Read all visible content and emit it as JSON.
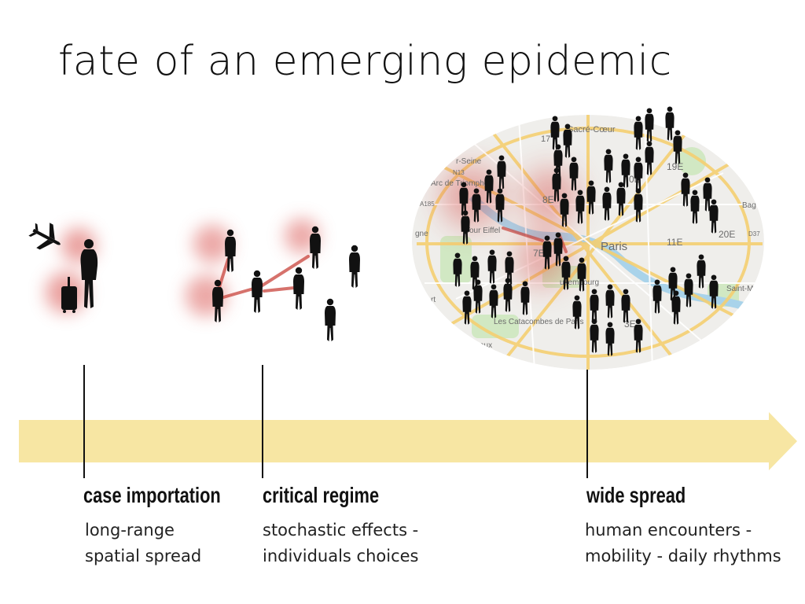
{
  "title": "fate of an emerging epidemic",
  "colors": {
    "timeline_arrow": "#f7e6a3",
    "infection_glow": "#d9534f",
    "transmission_line": "#c9443c",
    "silhouette": "#111111",
    "marker_line": "#111111",
    "map_road": "#f4cf72",
    "map_water": "#a9d3ea",
    "map_park": "#c9e6b9"
  },
  "stages": [
    {
      "id": "case-importation",
      "label": "case importation",
      "desc_lines": [
        "long-range",
        "spatial spread"
      ],
      "icons": [
        "airplane-icon",
        "traveler-with-suitcase-icon"
      ]
    },
    {
      "id": "critical-regime",
      "label": "critical regime",
      "desc_lines": [
        "stochastic effects -",
        "individuals choices"
      ],
      "icons": [
        "person-silhouette-icon"
      ]
    },
    {
      "id": "wide-spread",
      "label": "wide spread",
      "desc_lines": [
        "human encounters -",
        "mobility - daily rhythms"
      ],
      "icons": [
        "city-map-icon",
        "crowd-icon"
      ]
    }
  ],
  "map": {
    "labels": [
      {
        "text": "Paris",
        "kind": "city"
      },
      {
        "text": "Sacré-Cœur",
        "kind": "poi"
      },
      {
        "text": "17",
        "kind": "district"
      },
      {
        "text": "19E",
        "kind": "district"
      },
      {
        "text": "8E",
        "kind": "district"
      },
      {
        "text": "0E",
        "kind": "district"
      },
      {
        "text": "11E",
        "kind": "district"
      },
      {
        "text": "20E",
        "kind": "district"
      },
      {
        "text": "7E",
        "kind": "district"
      },
      {
        "text": "3E",
        "kind": "district"
      },
      {
        "text": "Arc de Triomphe",
        "kind": "poi"
      },
      {
        "text": "Tour Eiffel",
        "kind": "poi"
      },
      {
        "text": "uxembourg",
        "kind": "poi"
      },
      {
        "text": "Les Catacombes de Paris",
        "kind": "poi"
      },
      {
        "text": "aux",
        "kind": "poi"
      },
      {
        "text": "rt",
        "kind": "poi"
      },
      {
        "text": "Saint-M",
        "kind": "poi"
      },
      {
        "text": "Bag",
        "kind": "poi"
      },
      {
        "text": "r-Seine",
        "kind": "poi"
      },
      {
        "text": "N13",
        "kind": "road"
      },
      {
        "text": "A185",
        "kind": "road"
      },
      {
        "text": "D37",
        "kind": "road"
      },
      {
        "text": "gne",
        "kind": "poi"
      }
    ]
  }
}
